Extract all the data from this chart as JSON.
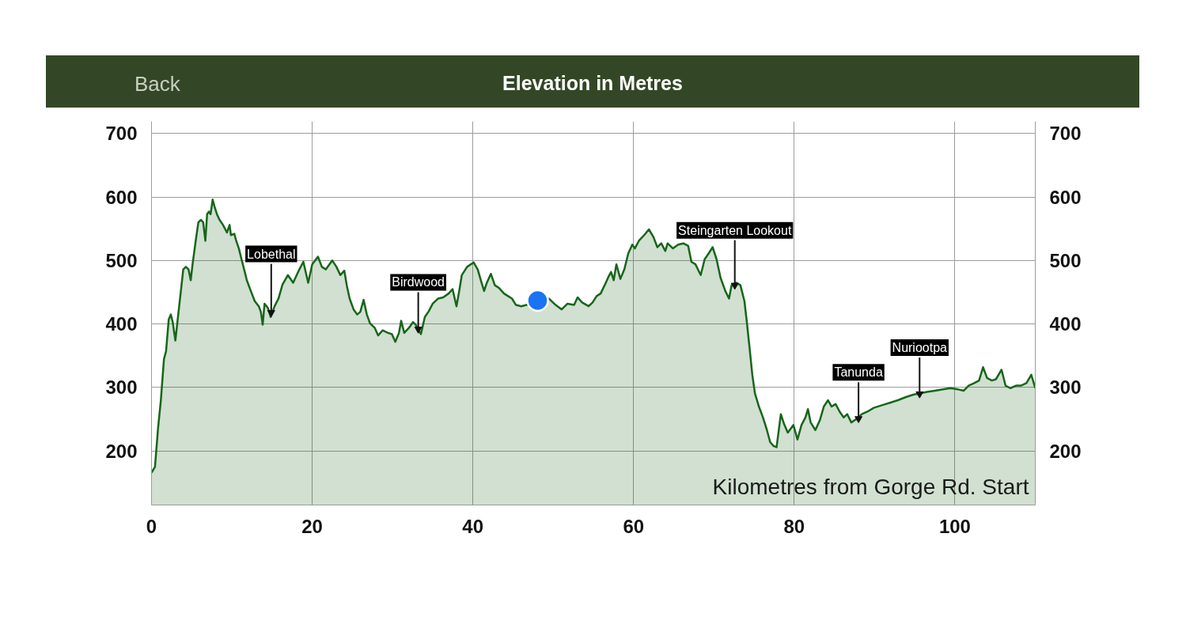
{
  "chart_data": {
    "type": "area",
    "title": "Elevation in Metres",
    "xlabel": "Kilometres from Gorge Rd. Start",
    "annotations": [
      "Back",
      {
        "text": "Lobethal",
        "x": 14.9,
        "y": 418
      },
      {
        "text": "Birdwood",
        "x": 33.2,
        "y": 392
      },
      {
        "text": "Steingarten Lookout",
        "x": 72.6,
        "y": 461
      },
      {
        "text": "Tanunda",
        "x": 88.0,
        "y": 251
      },
      {
        "text": "Nuriootpa",
        "x": 95.6,
        "y": 290
      }
    ],
    "xlim": [
      0,
      110
    ],
    "xticks": [
      0,
      20,
      40,
      60,
      80,
      100
    ],
    "ylim": [
      115,
      719
    ],
    "yticks": [
      200,
      300,
      400,
      500,
      600,
      700
    ],
    "y2lim": [
      115,
      719
    ],
    "y2ticks": [
      200,
      300,
      400,
      500,
      600,
      700
    ],
    "grid": true,
    "series": [
      {
        "color": "#17661a",
        "x": [
          0,
          0.43,
          0.82,
          1.15,
          1.55,
          1.81,
          2.14,
          2.4,
          2.64,
          2.97,
          3.29,
          3.62,
          3.95,
          4.28,
          4.61,
          4.88,
          5.11,
          5.5,
          5.83,
          6.16,
          6.43,
          6.7,
          6.92,
          7.15,
          7.35,
          7.61,
          7.84,
          8.14,
          8.47,
          8.9,
          9.39,
          9.72,
          9.88,
          10.31,
          10.54,
          10.87,
          11.2,
          11.53,
          11.86,
          12.36,
          12.85,
          13.35,
          13.61,
          13.84,
          14.07,
          14.5,
          14.83,
          15.32,
          15.8,
          16.3,
          16.97,
          17.63,
          18.4,
          18.9,
          19.5,
          20.0,
          20.72,
          21.2,
          21.7,
          22.5,
          23.02,
          23.5,
          24.0,
          24.3,
          24.66,
          25.15,
          25.6,
          25.98,
          26.4,
          26.8,
          27.2,
          27.78,
          28.2,
          28.77,
          29.43,
          29.92,
          30.35,
          30.8,
          31.07,
          31.46,
          32.05,
          32.54,
          32.87,
          33.53,
          34.02,
          34.5,
          35.0,
          35.66,
          36.3,
          36.98,
          37.47,
          37.96,
          38.3,
          38.62,
          39.28,
          40.1,
          40.6,
          41.08,
          41.4,
          41.74,
          42.24,
          42.73,
          43.23,
          43.88,
          44.38,
          44.87,
          45.36,
          46.02,
          46.68,
          47.4,
          48.06,
          48.8,
          49.47,
          50.3,
          51.05,
          51.78,
          52.6,
          53.03,
          53.59,
          54.41,
          54.9,
          55.4,
          55.9,
          56.4,
          56.9,
          57.2,
          57.53,
          57.86,
          58.36,
          58.85,
          59.34,
          59.84,
          60.16,
          60.66,
          61.32,
          61.91,
          62.47,
          62.96,
          63.45,
          63.95,
          64.24,
          64.9,
          65.56,
          66.2,
          66.8,
          67.2,
          67.7,
          68.36,
          68.85,
          69.34,
          69.84,
          70.33,
          70.82,
          71.42,
          71.88,
          72.2,
          72.8,
          73.3,
          73.8,
          74.1,
          74.45,
          74.78,
          75.1,
          75.6,
          76.1,
          76.6,
          77.0,
          77.43,
          77.8,
          78.33,
          78.72,
          79.2,
          79.9,
          80.4,
          80.9,
          81.4,
          81.7,
          82.04,
          82.63,
          83.2,
          83.68,
          84.2,
          84.65,
          85.15,
          85.65,
          86.15,
          86.6,
          87.1,
          87.8,
          88.4,
          89.1,
          89.9,
          90.9,
          91.9,
          92.9,
          93.9,
          94.9,
          95.7,
          96.5,
          97.5,
          98.5,
          99.45,
          100.4,
          101.1,
          101.7,
          102.4,
          103.0,
          103.5,
          104.0,
          104.6,
          105.1,
          105.8,
          106.3,
          106.9,
          107.6,
          108.2,
          108.9,
          109.5,
          110
        ],
        "values": [
          166,
          175,
          237,
          278,
          345,
          357,
          407,
          415,
          403,
          374,
          411,
          448,
          486,
          490,
          486,
          469,
          494,
          531,
          560,
          564,
          560,
          531,
          573,
          577,
          573,
          596,
          585,
          573,
          564,
          556,
          544,
          556,
          540,
          542,
          531,
          519,
          502,
          486,
          469,
          452,
          436,
          428,
          419,
          399,
          432,
          425,
          411,
          428,
          440,
          462,
          477,
          465,
          486,
          498,
          465,
          494,
          506,
          490,
          486,
          500,
          490,
          477,
          484,
          461,
          440,
          423,
          415,
          419,
          438,
          415,
          401,
          394,
          382,
          390,
          386,
          384,
          372,
          386,
          405,
          386,
          394,
          403,
          399,
          384,
          411,
          420,
          432,
          440,
          442,
          448,
          455,
          428,
          452,
          477,
          490,
          497,
          486,
          465,
          452,
          465,
          479,
          461,
          457,
          448,
          444,
          440,
          430,
          428,
          430,
          435,
          435,
          438,
          440,
          430,
          423,
          432,
          430,
          442,
          434,
          428,
          434,
          444,
          448,
          461,
          475,
          482,
          469,
          494,
          471,
          486,
          511,
          525,
          519,
          531,
          540,
          549,
          537,
          521,
          527,
          515,
          527,
          519,
          525,
          527,
          523,
          498,
          494,
          477,
          502,
          511,
          521,
          502,
          473,
          452,
          440,
          461,
          465,
          461,
          436,
          403,
          361,
          320,
          291,
          270,
          253,
          233,
          214,
          208,
          206,
          258,
          243,
          229,
          241,
          218,
          241,
          253,
          266,
          245,
          233,
          249,
          270,
          280,
          270,
          274,
          262,
          253,
          258,
          245,
          251,
          258,
          262,
          268,
          272,
          276,
          280,
          285,
          289,
          291,
          293,
          295,
          297,
          299,
          297,
          295,
          303,
          307,
          311,
          332,
          315,
          311,
          313,
          328,
          303,
          299,
          303,
          303,
          307,
          320,
          299
        ]
      },
      {
        "type": "scatter",
        "color": "#1a73f5",
        "marker": "circle",
        "x": [
          48.06
        ],
        "values": [
          437
        ]
      }
    ]
  }
}
